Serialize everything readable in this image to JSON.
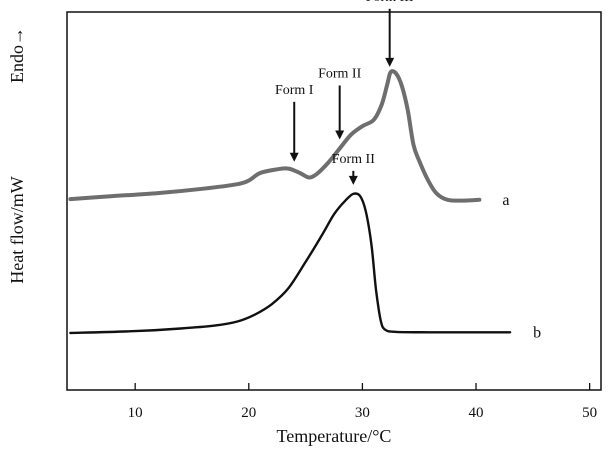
{
  "chart_data": {
    "type": "line",
    "title": "",
    "xlabel": "Temperature/°C",
    "ylabel": "Heat flow/mW",
    "ylabel_extra": "Endo→",
    "xlim": [
      4,
      51
    ],
    "x_ticks": [
      10,
      20,
      30,
      40,
      50
    ],
    "x_tick_labels": [
      "10",
      "20",
      "30",
      "40",
      "50"
    ],
    "ylim": [
      0,
      100
    ],
    "y_ticks": [],
    "grid": false,
    "legend": "none",
    "series": [
      {
        "name": "a",
        "color": "#6e6e6e",
        "points": [
          [
            4.3,
            36
          ],
          [
            8,
            36.8
          ],
          [
            12,
            37.6
          ],
          [
            16,
            38.8
          ],
          [
            19,
            40
          ],
          [
            20,
            41
          ],
          [
            21,
            43
          ],
          [
            22.5,
            44
          ],
          [
            23.5,
            44.2
          ],
          [
            24.5,
            43
          ],
          [
            25.3,
            41.8
          ],
          [
            26,
            42.8
          ],
          [
            27,
            45.8
          ],
          [
            28,
            49.6
          ],
          [
            29,
            53.3
          ],
          [
            30,
            55.6
          ],
          [
            31,
            57.3
          ],
          [
            31.7,
            61.4
          ],
          [
            32.2,
            67
          ],
          [
            32.5,
            70.2
          ],
          [
            33,
            69.6
          ],
          [
            33.5,
            66.1
          ],
          [
            34,
            59.7
          ],
          [
            34.5,
            50.6
          ],
          [
            35,
            46.3
          ],
          [
            35.7,
            41.5
          ],
          [
            36.5,
            37.6
          ],
          [
            37.5,
            35.8
          ],
          [
            39,
            35.6
          ],
          [
            40.3,
            35.8
          ]
        ]
      },
      {
        "name": "b",
        "color": "#111111",
        "points": [
          [
            4.3,
            0
          ],
          [
            10,
            0.5
          ],
          [
            14,
            1.2
          ],
          [
            17,
            2
          ],
          [
            19,
            3.1
          ],
          [
            20.5,
            4.9
          ],
          [
            22,
            7.7
          ],
          [
            23.5,
            12.1
          ],
          [
            25,
            19.1
          ],
          [
            26.5,
            26.6
          ],
          [
            27.5,
            31.9
          ],
          [
            28.5,
            35.6
          ],
          [
            29.2,
            37.4
          ],
          [
            29.8,
            36.8
          ],
          [
            30.3,
            32.7
          ],
          [
            30.8,
            23.6
          ],
          [
            31.2,
            11.6
          ],
          [
            31.6,
            3.5
          ],
          [
            32,
            0.9
          ],
          [
            33,
            0.3
          ],
          [
            36,
            0.2
          ],
          [
            40,
            0.2
          ],
          [
            43,
            0.2
          ]
        ]
      }
    ],
    "annotations": [
      {
        "text": "Form I",
        "x": 24
      },
      {
        "text": "Form II",
        "x": 28
      },
      {
        "text": "Form III",
        "x": 32.4
      },
      {
        "text": "Form II",
        "x": 29.2
      }
    ],
    "curve_labels": [
      {
        "text": "a",
        "series": "a"
      },
      {
        "text": "b",
        "series": "b"
      }
    ]
  }
}
